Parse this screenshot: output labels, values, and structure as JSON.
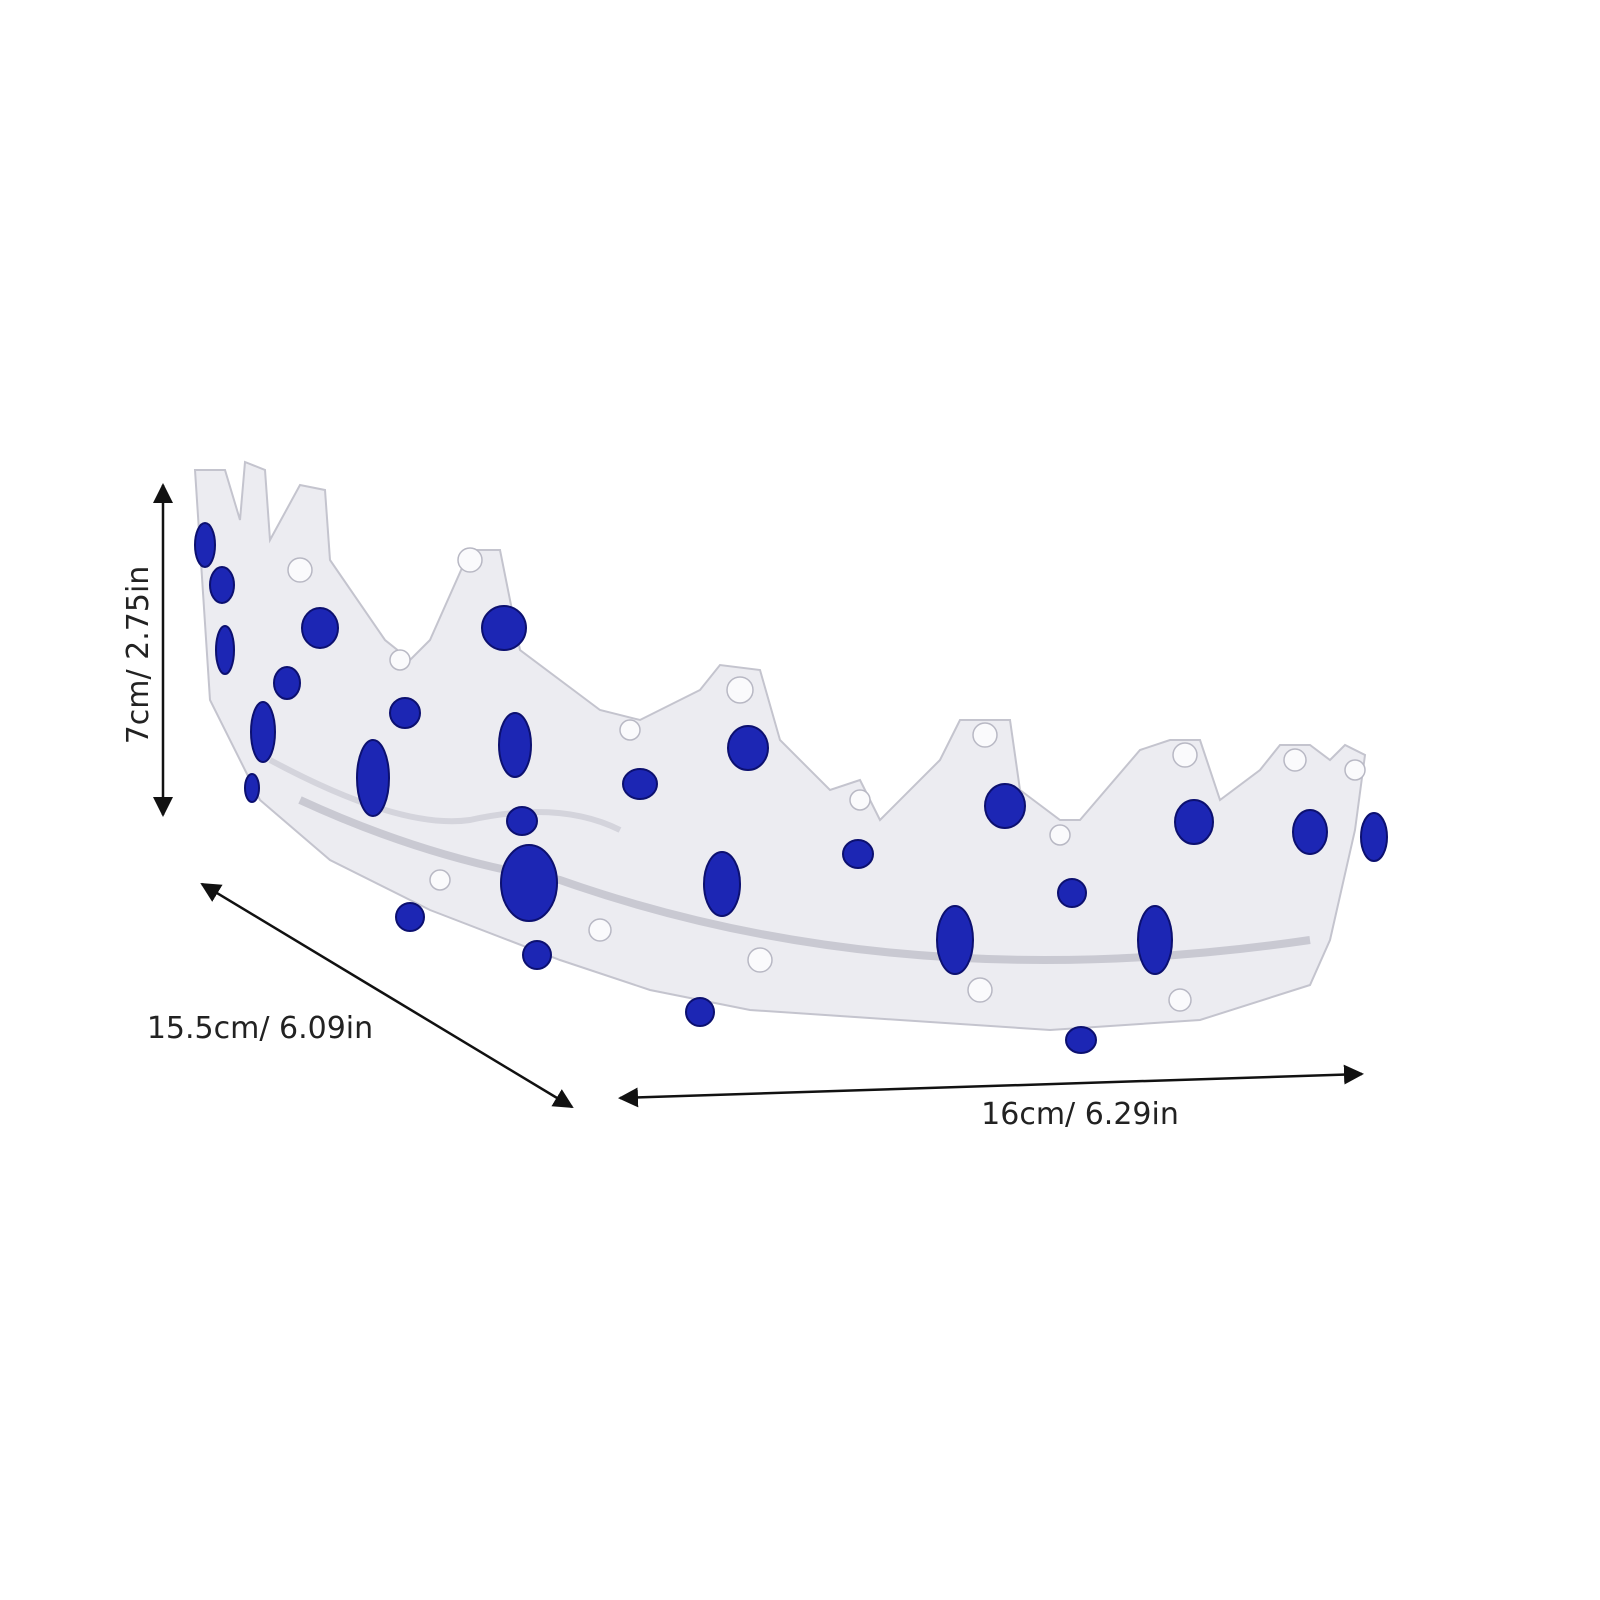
{
  "dimensions": {
    "height": "7cm/ 2.75in",
    "depth": "15.5cm/ 6.09in",
    "width": "16cm/ 6.29in"
  }
}
